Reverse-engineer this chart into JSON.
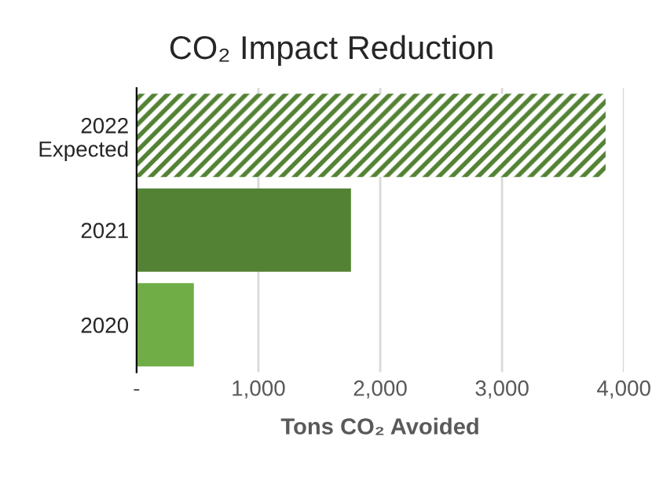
{
  "chart_data": {
    "type": "bar",
    "orientation": "horizontal",
    "title": "CO₂ Impact Reduction",
    "xlabel": "Tons CO₂ Avoided",
    "categories": [
      "2022\nExpected",
      "2021",
      "2020"
    ],
    "series": [
      {
        "color": "#548235",
        "line_style": "dashed",
        "values": [
          3850,
          null,
          null
        ]
      },
      {
        "colors": [
          null,
          "#548235",
          "#70ad47"
        ],
        "values": [
          null,
          1760,
          470
        ]
      }
    ],
    "xlim": [
      0,
      4000
    ],
    "xticks": [
      {
        "value": 0,
        "label": "-"
      },
      {
        "value": 1000,
        "label": "1,000"
      },
      {
        "value": 2000,
        "label": "2,000"
      },
      {
        "value": 3000,
        "label": "3,000"
      },
      {
        "value": 4000,
        "label": "4,000"
      }
    ],
    "grid": "x",
    "legend": false
  }
}
